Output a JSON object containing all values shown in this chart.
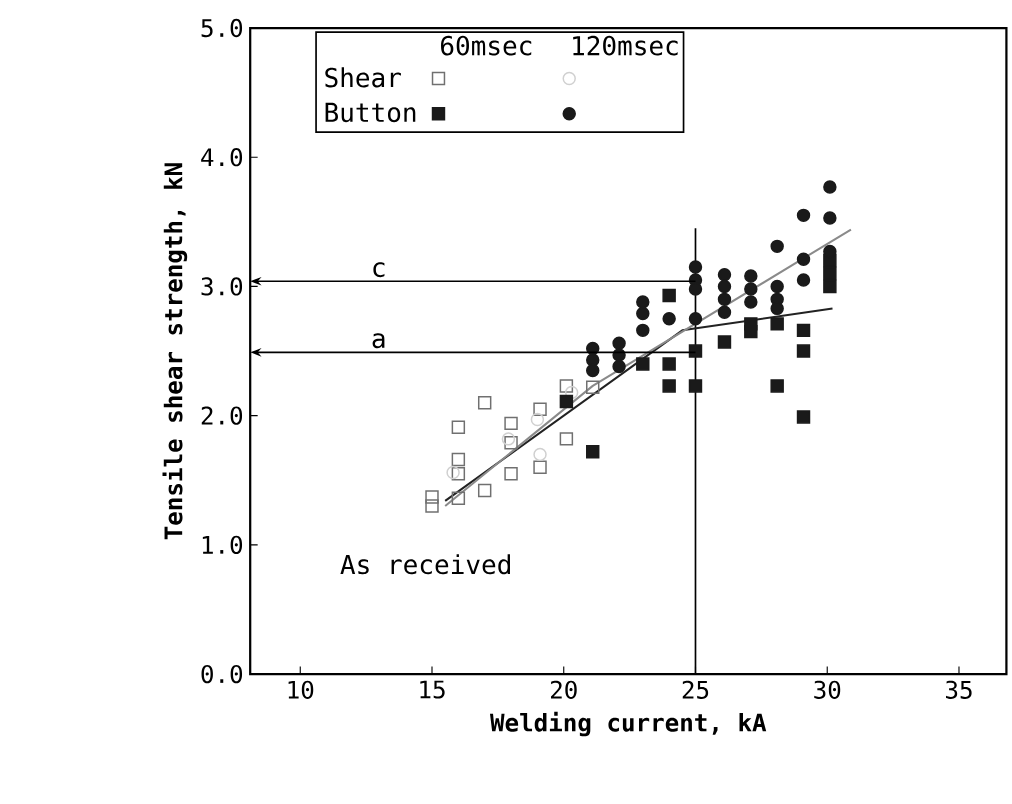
{
  "chart_data": {
    "type": "scatter",
    "xlabel": "Welding current, kA",
    "ylabel": "Tensile shear strength, kN",
    "xlim": [
      8.1,
      36.8
    ],
    "ylim": [
      0,
      5
    ],
    "xticks": [
      10,
      15,
      20,
      25,
      30,
      35
    ],
    "yticks": [
      {
        "value": 0,
        "label": "0.0"
      },
      {
        "value": 1,
        "label": "1.0"
      },
      {
        "value": 2,
        "label": "2.0"
      },
      {
        "value": 3,
        "label": "3.0"
      },
      {
        "value": 4,
        "label": "4.0"
      },
      {
        "value": 5,
        "label": "5.0"
      }
    ],
    "legend": "top left",
    "grid": false,
    "series": [
      {
        "name": "Shear",
        "color": "#707070",
        "marker": "square",
        "x": [
          15.0,
          15.0,
          16.0,
          16.0,
          16.0,
          16.0,
          17.0,
          17.0,
          18.0,
          18.0,
          18.0,
          19.1,
          19.1,
          20.1,
          20.1,
          21.1
        ],
        "values": [
          1.37,
          1.3,
          1.91,
          1.66,
          1.55,
          1.36,
          2.1,
          1.42,
          1.94,
          1.79,
          1.55,
          2.05,
          1.6,
          2.23,
          1.82,
          2.22
        ]
      },
      {
        "name": "Button",
        "color": "#1a1a1a",
        "marker": "square",
        "x": [
          20.1,
          21.1,
          23.0,
          24.0,
          24.0,
          24.0,
          25.0,
          25.0,
          26.1,
          27.1,
          27.1,
          28.1,
          28.1,
          29.1,
          29.1,
          29.1,
          30.1,
          30.1,
          30.1
        ],
        "values": [
          2.11,
          1.72,
          2.4,
          2.93,
          2.4,
          2.23,
          2.5,
          2.23,
          2.57,
          2.71,
          2.65,
          2.71,
          2.23,
          2.66,
          2.5,
          1.99,
          3.2,
          3.1,
          3.0
        ]
      },
      {
        "color": "#d0d0d0",
        "marker": "circle",
        "x": [
          15.8,
          17.9,
          19.0,
          19.1,
          20.3
        ],
        "values": [
          1.56,
          1.82,
          1.97,
          1.7,
          2.18
        ]
      },
      {
        "color": "#1a1a1a",
        "marker": "circle",
        "x": [
          21.1,
          21.1,
          21.1,
          22.1,
          22.1,
          22.1,
          23.0,
          23.0,
          23.0,
          24.0,
          25.0,
          25.0,
          25.0,
          25.0,
          26.1,
          26.1,
          26.1,
          26.1,
          27.1,
          27.1,
          27.1,
          28.1,
          28.1,
          28.1,
          28.1,
          29.1,
          29.1,
          29.1,
          30.1,
          30.1,
          30.1
        ],
        "values": [
          2.52,
          2.43,
          2.35,
          2.56,
          2.47,
          2.38,
          2.88,
          2.79,
          2.66,
          2.75,
          3.15,
          3.05,
          2.98,
          2.75,
          3.09,
          3.0,
          2.9,
          2.8,
          3.08,
          2.98,
          2.88,
          3.31,
          3.0,
          2.9,
          2.83,
          3.55,
          3.21,
          3.05,
          3.77,
          3.53,
          3.27
        ]
      },
      {
        "type": "line",
        "color": "#222222",
        "marker": "none",
        "line_style": "solid",
        "x": [
          15.5,
          24.5,
          30.2
        ],
        "values": [
          1.34,
          2.66,
          2.83
        ]
      },
      {
        "type": "line",
        "color": "#8a8a8a",
        "marker": "none",
        "line_style": "solid",
        "x": [
          15.5,
          21.1,
          30.9
        ],
        "values": [
          1.3,
          2.23,
          3.44
        ]
      }
    ],
    "ref_lines": [
      {
        "axis": "y",
        "value": 3.04,
        "label": "c"
      },
      {
        "axis": "y",
        "value": 2.49,
        "label": "a"
      },
      {
        "axis": "x",
        "value": 25
      }
    ],
    "annotations": [
      "60msec",
      "120msec",
      "As received"
    ]
  }
}
